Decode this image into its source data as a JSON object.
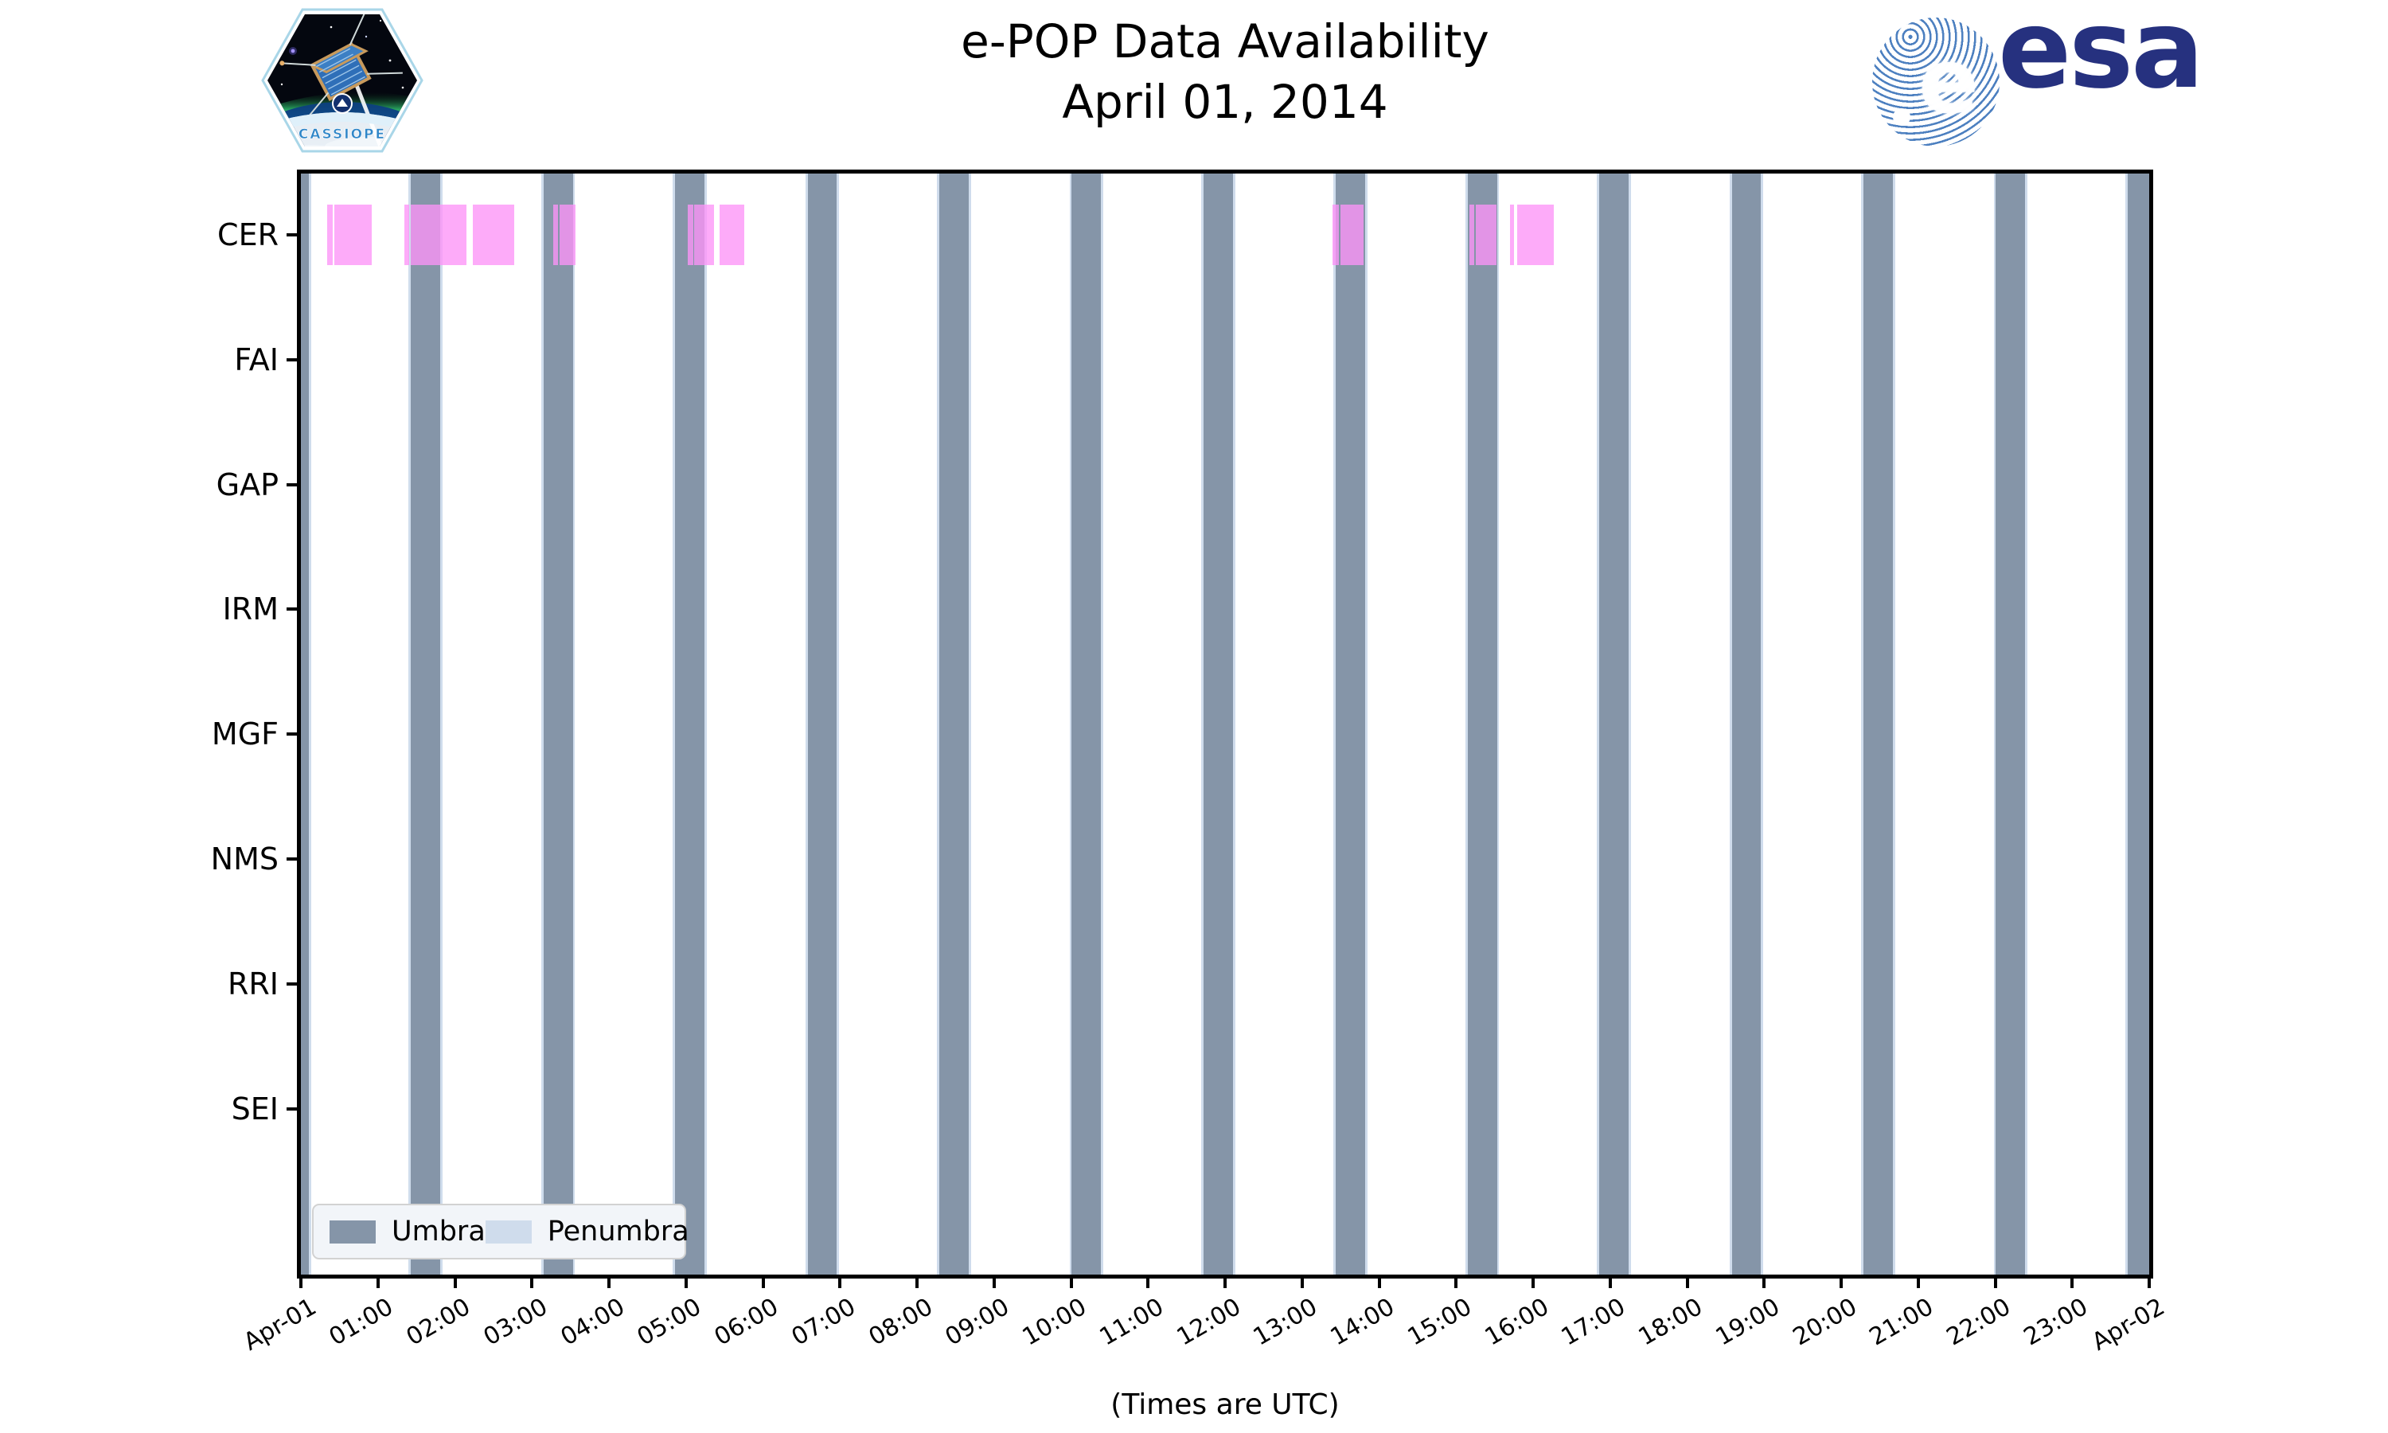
{
  "header": {
    "title_line1": "e-POP Data Availability",
    "title_line2": "April 01, 2014",
    "cassiope_wordmark": "CASSIOPE",
    "esa_wordmark": "esa",
    "esa_disc_letter": "e"
  },
  "icons": {
    "cassiope_badge": "cassiope-mission-patch",
    "esa_badge": "esa-logo"
  },
  "chart_data": {
    "type": "timeline",
    "title": "e-POP Data Availability",
    "subtitle": "April 01, 2014",
    "xlabel": "(Times are UTC)",
    "x_range_hours": [
      0,
      24
    ],
    "x_tick_labels": [
      "Apr-01",
      "01:00",
      "02:00",
      "03:00",
      "04:00",
      "05:00",
      "06:00",
      "07:00",
      "08:00",
      "09:00",
      "10:00",
      "11:00",
      "12:00",
      "13:00",
      "14:00",
      "15:00",
      "16:00",
      "17:00",
      "18:00",
      "19:00",
      "20:00",
      "21:00",
      "22:00",
      "23:00",
      "Apr-02"
    ],
    "y_categories": [
      "CER",
      "FAI",
      "GAP",
      "IRM",
      "MGF",
      "NMS",
      "RRI",
      "SEI"
    ],
    "grid": false,
    "legend_position": "lower-left",
    "legend": {
      "entries": [
        {
          "label": "Umbra",
          "color": "#8595A8"
        },
        {
          "label": "Penumbra",
          "color": "#CFDCEC"
        }
      ]
    },
    "colors": {
      "umbra": "#8595A8",
      "penumbra": "#CFDCEC",
      "available": "rgba(252,148,247,0.78)",
      "spine": "#000000"
    },
    "umbra_intervals_hours": [
      [
        -0.28,
        0.1
      ],
      [
        1.43,
        1.81
      ],
      [
        3.15,
        3.53
      ],
      [
        4.86,
        5.24
      ],
      [
        6.58,
        6.96
      ],
      [
        8.29,
        8.67
      ],
      [
        10.01,
        10.39
      ],
      [
        11.72,
        12.1
      ],
      [
        13.44,
        13.82
      ],
      [
        15.15,
        15.53
      ],
      [
        16.86,
        17.24
      ],
      [
        18.58,
        18.96
      ],
      [
        20.29,
        20.67
      ],
      [
        22.01,
        22.39
      ],
      [
        23.72,
        24.1
      ]
    ],
    "penumbra_halfwidth_hours": 0.03,
    "series": [
      {
        "name": "CER",
        "row": 0,
        "intervals_hours": [
          [
            0.34,
            0.41
          ],
          [
            0.43,
            0.92
          ],
          [
            1.34,
            1.41
          ],
          [
            1.43,
            2.15
          ],
          [
            2.23,
            2.77
          ],
          [
            3.28,
            3.34
          ],
          [
            3.36,
            3.57
          ],
          [
            5.02,
            5.1
          ],
          [
            5.11,
            5.36
          ],
          [
            5.44,
            5.76
          ],
          [
            13.4,
            13.48
          ],
          [
            13.5,
            13.8
          ],
          [
            15.17,
            15.24
          ],
          [
            15.26,
            15.52
          ],
          [
            15.7,
            15.75
          ],
          [
            15.79,
            16.27
          ]
        ]
      },
      {
        "name": "FAI",
        "row": 1,
        "intervals_hours": []
      },
      {
        "name": "GAP",
        "row": 2,
        "intervals_hours": []
      },
      {
        "name": "IRM",
        "row": 3,
        "intervals_hours": []
      },
      {
        "name": "MGF",
        "row": 4,
        "intervals_hours": []
      },
      {
        "name": "NMS",
        "row": 5,
        "intervals_hours": []
      },
      {
        "name": "RRI",
        "row": 6,
        "intervals_hours": []
      },
      {
        "name": "SEI",
        "row": 7,
        "intervals_hours": []
      }
    ]
  }
}
